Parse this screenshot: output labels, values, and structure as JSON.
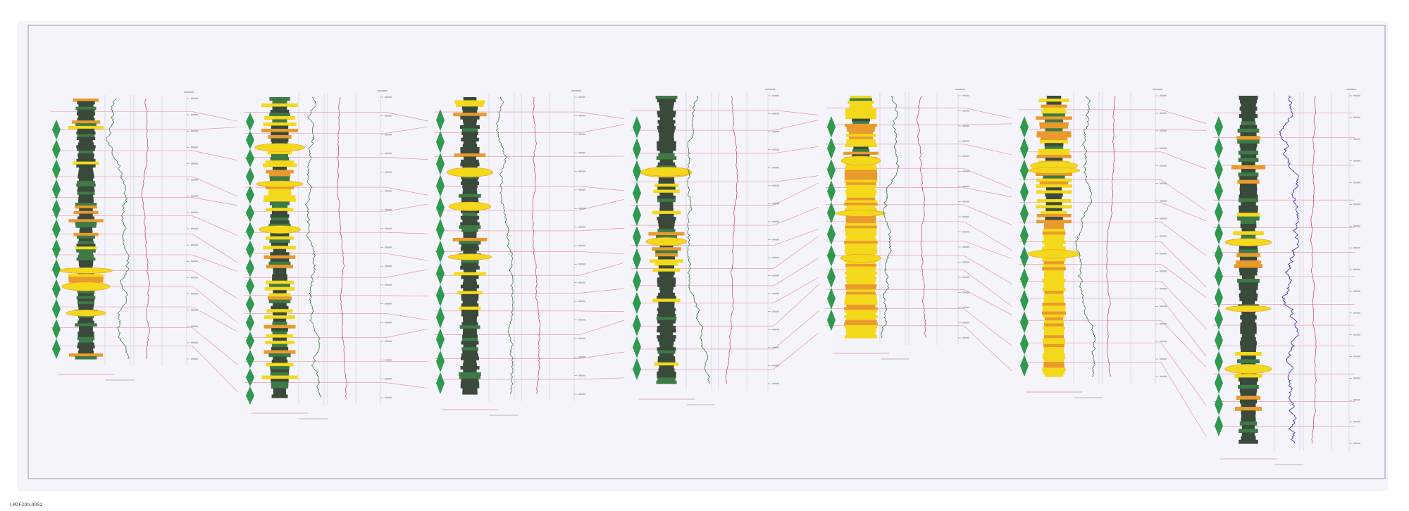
{
  "footer": {
    "code": "I.PDF200.0052"
  },
  "colors": {
    "paper": "#f7f6fc",
    "frame": "#9a9aa8",
    "correlation_line": "#e4747a",
    "marker": "#2f9a4e",
    "shale": "#3a4a3a",
    "silt": "#3f7a46",
    "sand_yellow": "#f4d81c",
    "sand_orange": "#e99a2c",
    "gamma_curve": "#2d6a33",
    "resistivity_curve": "#c0405a",
    "sonic_curve": "#3b3ba8",
    "depth_text": "#555566"
  },
  "wells": [
    {
      "id": "well-1",
      "lithology_tone": "mixed",
      "curve": "gamma-ray"
    },
    {
      "id": "well-2",
      "lithology_tone": "mixed",
      "curve": "gamma-ray"
    },
    {
      "id": "well-3",
      "lithology_tone": "shaly",
      "curve": "gamma-ray"
    },
    {
      "id": "well-4",
      "lithology_tone": "shaly",
      "curve": "gamma-ray"
    },
    {
      "id": "well-5",
      "lithology_tone": "sandy",
      "curve": "gamma-ray"
    },
    {
      "id": "well-6",
      "lithology_tone": "sandy-lower",
      "curve": "gamma-ray"
    },
    {
      "id": "well-7",
      "lithology_tone": "mixed",
      "curve": "sonic"
    }
  ],
  "icons": {
    "marker": "diamond-marker-icon"
  }
}
